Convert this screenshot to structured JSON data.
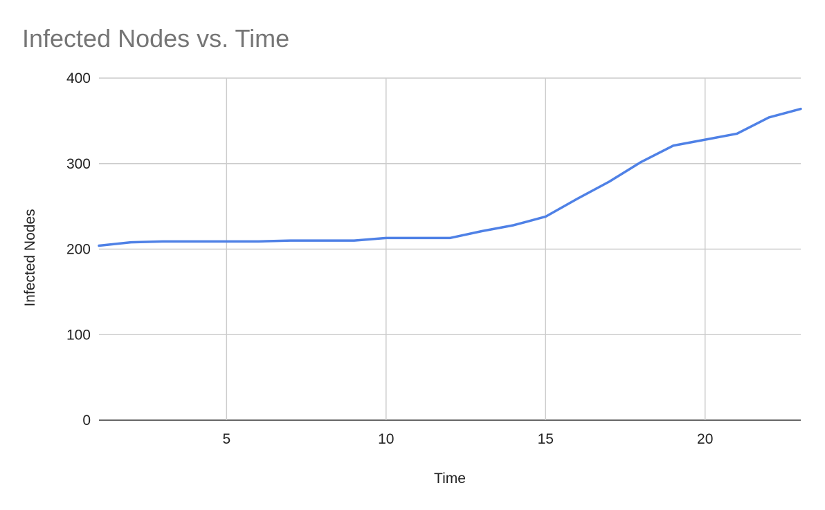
{
  "chart_data": {
    "type": "line",
    "title": "Infected Nodes vs. Time",
    "xlabel": "Time",
    "ylabel": "Infected Nodes",
    "xlim": [
      1,
      23
    ],
    "ylim": [
      0,
      400
    ],
    "x_ticks": [
      5,
      10,
      15,
      20
    ],
    "y_ticks": [
      0,
      100,
      200,
      300,
      400
    ],
    "grid": true,
    "legend": "none",
    "series": [
      {
        "color": "#4f81e6",
        "x": [
          1,
          2,
          3,
          4,
          5,
          6,
          7,
          8,
          9,
          10,
          11,
          12,
          13,
          14,
          15,
          16,
          17,
          18,
          19,
          20,
          21,
          22,
          23
        ],
        "values": [
          204,
          208,
          209,
          209,
          209,
          209,
          210,
          210,
          210,
          213,
          213,
          213,
          221,
          228,
          238,
          259,
          279,
          302,
          321,
          328,
          335,
          354,
          364
        ]
      }
    ]
  }
}
